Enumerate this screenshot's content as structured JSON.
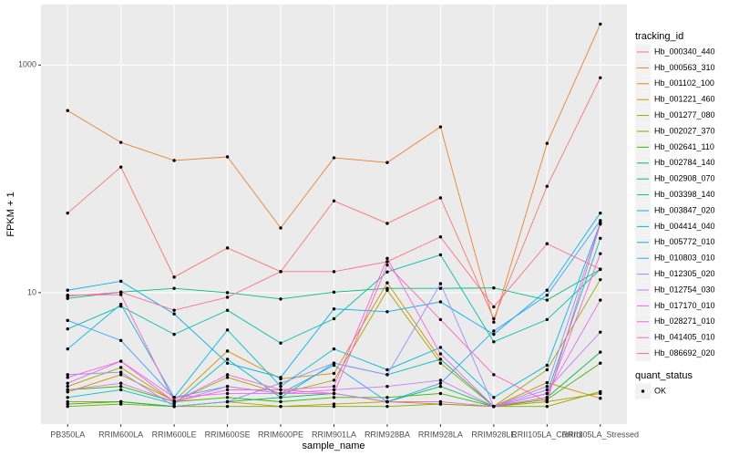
{
  "chart_data": {
    "type": "line",
    "log_y": true,
    "grid": true,
    "x_label": "sample_name",
    "y_label": "FPKM + 1",
    "legend_title": "tracking_id",
    "legend_position": "right",
    "marker_legend_title": "quant_status",
    "marker_legend_labels": [
      "OK"
    ],
    "categories": [
      "PB350LA",
      "RRIM600LA",
      "RRIM600LE",
      "RRIM600SE",
      "RRIM600PE",
      "RRIM901LA",
      "RRIM928BA",
      "RRIM928LA",
      "RRIM928LE",
      "RRII105LA_Control",
      "RRII105LA_Stressed"
    ],
    "ylim": [
      0.7,
      3400
    ],
    "yticks": [
      10,
      1000
    ],
    "series": [
      {
        "name": "Hb_000340_440",
        "color": "#F8766D",
        "values": [
          50,
          127,
          13.7,
          24.7,
          15.3,
          64,
          40.6,
          68,
          5.9,
          86,
          773
        ]
      },
      {
        "name": "Hb_000563_310",
        "color": "#EA8331",
        "values": [
          398,
          209,
          145,
          156,
          37,
          153,
          139,
          286,
          5.5,
          205,
          2290
        ]
      },
      {
        "name": "Hb_001102_100",
        "color": "#D89000",
        "values": [
          1.34,
          1.9,
          1.12,
          3.07,
          1.75,
          1.95,
          12.2,
          2.6,
          1.0,
          1.62,
          1.18
        ]
      },
      {
        "name": "Hb_001221_460",
        "color": "#C09B00",
        "values": [
          1.1,
          1.1,
          1.0,
          1.1,
          1.0,
          1.05,
          1.1,
          1.05,
          1.0,
          1.1,
          1.3
        ]
      },
      {
        "name": "Hb_001277_080",
        "color": "#A3A500",
        "values": [
          1.5,
          2.2,
          1.1,
          1.8,
          1.3,
          1.7,
          10.5,
          2.4,
          1.0,
          2.1,
          13
        ]
      },
      {
        "name": "Hb_002027_370",
        "color": "#7CAE00",
        "values": [
          1.0,
          1.05,
          1.0,
          1.0,
          1.0,
          1.0,
          1.0,
          1.05,
          1.0,
          1.0,
          1.35
        ]
      },
      {
        "name": "Hb_002641_110",
        "color": "#39B600",
        "values": [
          1.4,
          1.5,
          1.1,
          1.2,
          1.1,
          1.2,
          1.2,
          1.3,
          1.0,
          1.15,
          2.4
        ]
      },
      {
        "name": "Hb_002784_140",
        "color": "#00BB4E",
        "values": [
          1.05,
          1.1,
          1.0,
          1.1,
          1.2,
          1.3,
          1.1,
          1.5,
          1.0,
          1.2,
          3.0
        ]
      },
      {
        "name": "Hb_002908_070",
        "color": "#00BF7D",
        "values": [
          8.9,
          10.1,
          10.9,
          10,
          8.8,
          10.1,
          10.9,
          10.9,
          11,
          8.6,
          16
        ]
      },
      {
        "name": "Hb_003398_140",
        "color": "#00C1A3",
        "values": [
          4.8,
          7.6,
          4.3,
          7.0,
          3.6,
          5.9,
          15.2,
          21.5,
          3.7,
          5.8,
          16
        ]
      },
      {
        "name": "Hb_003847_020",
        "color": "#00BFC4",
        "values": [
          1.2,
          1.4,
          1.05,
          2.6,
          1.2,
          2.4,
          1.9,
          2.6,
          1.0,
          1.3,
          30
        ]
      },
      {
        "name": "Hb_004414_040",
        "color": "#00BAE0",
        "values": [
          3.2,
          7.9,
          1.2,
          4.7,
          1.5,
          3.2,
          2.1,
          3.3,
          1.2,
          2.3,
          41
        ]
      },
      {
        "name": "Hb_005772_010",
        "color": "#00B0F6",
        "values": [
          10.5,
          12.6,
          6.5,
          2.4,
          1.8,
          7.2,
          6.8,
          8.3,
          4.3,
          10.5,
          50
        ]
      },
      {
        "name": "Hb_010803_010",
        "color": "#35A2FF",
        "values": [
          5.7,
          3.8,
          1.2,
          1.5,
          1.3,
          2.3,
          1.1,
          1.6,
          4.6,
          9.5,
          43
        ]
      },
      {
        "name": "Hb_012305_020",
        "color": "#9590FF",
        "values": [
          1.9,
          2.0,
          1.0,
          1.1,
          1.6,
          2.4,
          1.9,
          12.0,
          1.0,
          1.5,
          41
        ]
      },
      {
        "name": "Hb_012754_030",
        "color": "#C77CFF",
        "values": [
          1.4,
          1.6,
          1.1,
          1.5,
          1.3,
          1.4,
          1.5,
          1.7,
          1.0,
          1.4,
          4.5
        ]
      },
      {
        "name": "Hb_017170_010",
        "color": "#E76BF3",
        "values": [
          1.6,
          2.5,
          1.2,
          1.3,
          1.3,
          1.3,
          1.1,
          1.1,
          1.0,
          1.3,
          8.6
        ]
      },
      {
        "name": "Hb_028271_010",
        "color": "#FA62DB",
        "values": [
          1.8,
          2.5,
          1.1,
          1.9,
          1.4,
          1.5,
          20,
          2.9,
          1.0,
          1.2,
          22
        ]
      },
      {
        "name": "Hb_041405_010",
        "color": "#FF62BC",
        "values": [
          9.5,
          9.6,
          1.1,
          1.4,
          1.4,
          1.3,
          17.5,
          5.8,
          1.9,
          1.1,
          40
        ]
      },
      {
        "name": "Hb_086692_020",
        "color": "#FF6C91",
        "values": [
          9.3,
          10.1,
          7.0,
          9.1,
          15.3,
          15.3,
          18.7,
          30.9,
          7.5,
          26.9,
          16.1
        ]
      }
    ]
  }
}
